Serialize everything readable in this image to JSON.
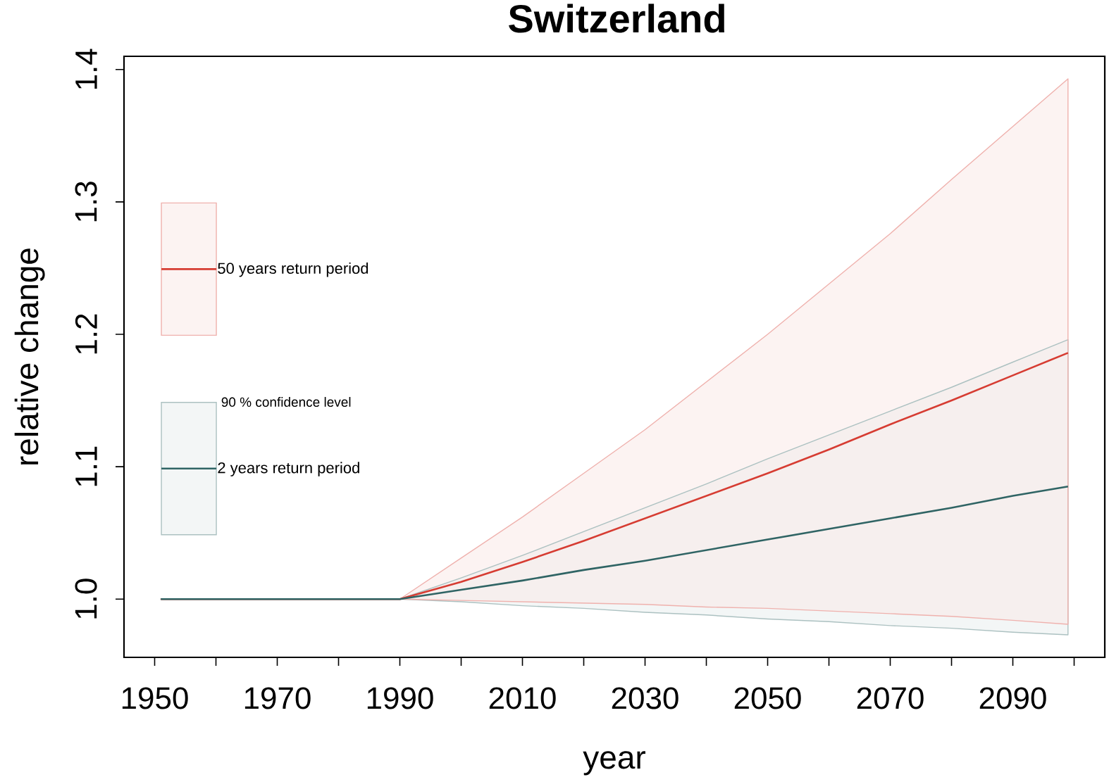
{
  "chart_data": {
    "type": "line",
    "title": "Switzerland",
    "xlabel": "year",
    "ylabel": "relative change",
    "x": [
      1951,
      1990,
      2000,
      2010,
      2020,
      2030,
      2040,
      2050,
      2060,
      2070,
      2080,
      2090,
      2099
    ],
    "series": [
      {
        "name": "50 years return period",
        "color": "#d63c32",
        "values": [
          1,
          1,
          1.013,
          1.028,
          1.044,
          1.061,
          1.078,
          1.095,
          1.113,
          1.132,
          1.15,
          1.169,
          1.186
        ],
        "lower": [
          1,
          1,
          0.999,
          0.998,
          0.997,
          0.996,
          0.994,
          0.993,
          0.991,
          0.989,
          0.987,
          0.984,
          0.981
        ],
        "upper": [
          1,
          1,
          1.031,
          1.062,
          1.095,
          1.128,
          1.164,
          1.2,
          1.238,
          1.276,
          1.317,
          1.357,
          1.393
        ]
      },
      {
        "name": "2 years return period",
        "color": "#2f6464",
        "values": [
          1,
          1,
          1.007,
          1.014,
          1.022,
          1.029,
          1.037,
          1.045,
          1.053,
          1.061,
          1.069,
          1.078,
          1.085
        ],
        "lower": [
          1,
          1,
          0.998,
          0.995,
          0.993,
          0.99,
          0.988,
          0.985,
          0.983,
          0.98,
          0.978,
          0.975,
          0.973
        ],
        "upper": [
          1,
          1,
          1.016,
          1.033,
          1.051,
          1.069,
          1.087,
          1.106,
          1.124,
          1.142,
          1.16,
          1.179,
          1.196
        ]
      }
    ],
    "xlim": [
      1945,
      2105
    ],
    "xticks": [
      1950,
      {
        "value": 1960,
        "label": null
      },
      1970,
      {
        "value": 1980,
        "label": null
      },
      1990,
      {
        "value": 2000,
        "label": null
      },
      2010,
      {
        "value": 2020,
        "label": null
      },
      2030,
      {
        "value": 2040,
        "label": null
      },
      2050,
      {
        "value": 2060,
        "label": null
      },
      2070,
      {
        "value": 2080,
        "label": null
      },
      2090,
      {
        "value": 2100,
        "label": null
      }
    ],
    "ylim": [
      0.956,
      1.41
    ],
    "yticks": [
      {
        "value": 1,
        "label": "1.0"
      },
      1.1,
      1.2,
      1.3,
      1.4
    ],
    "legend": "left",
    "annotations": [
      "90 % confidence level"
    ],
    "marker": "none",
    "line_style": "solid"
  }
}
